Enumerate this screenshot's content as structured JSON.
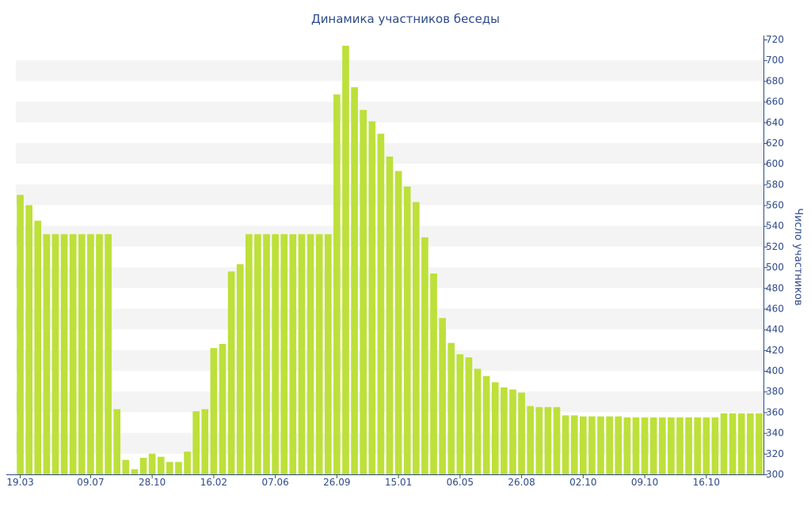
{
  "chart_data": {
    "type": "bar",
    "title": "Динамика участников беседы",
    "xlabel": "",
    "ylabel": "Число участников",
    "ylim": [
      300,
      720
    ],
    "y_ticks": [
      300,
      320,
      340,
      360,
      380,
      400,
      420,
      440,
      460,
      480,
      500,
      520,
      540,
      560,
      580,
      600,
      620,
      640,
      660,
      680,
      700,
      720
    ],
    "y_axis_side": "right",
    "grid": "alternating horizontal bands",
    "legend": "none",
    "bar_color": "#bde03a",
    "x_tick_labels": [
      {
        "label": "19.03",
        "index": 0
      },
      {
        "label": "09.07",
        "index": 8
      },
      {
        "label": "28.10",
        "index": 15
      },
      {
        "label": "16.02",
        "index": 22
      },
      {
        "label": "07.06",
        "index": 29
      },
      {
        "label": "26.09",
        "index": 36
      },
      {
        "label": "15.01",
        "index": 43
      },
      {
        "label": "06.05",
        "index": 50
      },
      {
        "label": "26.08",
        "index": 57
      },
      {
        "label": "02.10",
        "index": 64
      },
      {
        "label": "09.10",
        "index": 71
      },
      {
        "label": "16.10",
        "index": 78
      }
    ],
    "values": [
      570,
      560,
      545,
      532,
      532,
      532,
      532,
      532,
      532,
      532,
      532,
      363,
      314,
      305,
      316,
      320,
      317,
      312,
      312,
      322,
      361,
      363,
      422,
      426,
      496,
      503,
      532,
      532,
      532,
      532,
      532,
      532,
      532,
      532,
      532,
      532,
      667,
      714,
      674,
      652,
      641,
      629,
      607,
      593,
      578,
      563,
      529,
      494,
      451,
      427,
      416,
      413,
      402,
      395,
      389,
      384,
      382,
      379,
      366,
      365,
      365,
      365,
      357,
      357,
      356,
      356,
      356,
      356,
      356,
      355,
      355,
      355,
      355,
      355,
      355,
      355,
      355,
      355,
      355,
      355,
      359,
      359,
      359,
      359,
      359
    ]
  }
}
